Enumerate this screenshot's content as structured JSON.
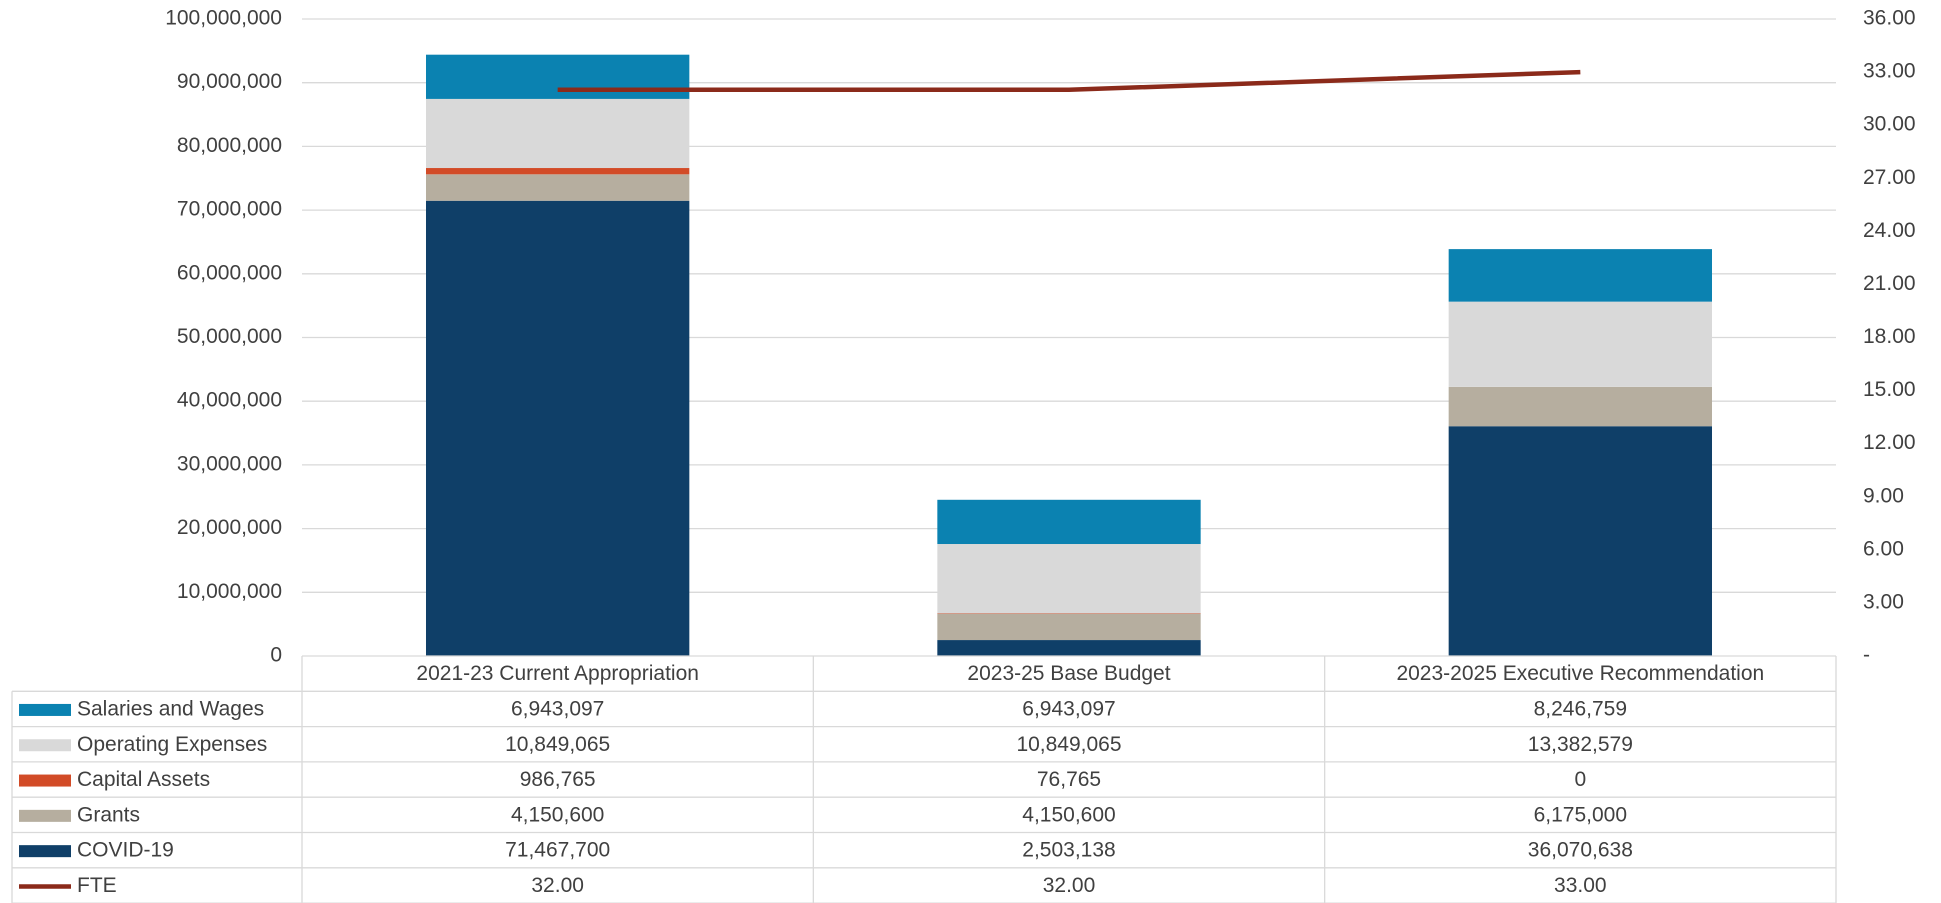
{
  "chart_data": {
    "type": "bar",
    "stacked": true,
    "categories": [
      "2021-23 Current Appropriation",
      "2023-25 Base Budget",
      "2023-2025 Executive Recommendation"
    ],
    "series": [
      {
        "name": "Salaries and Wages",
        "color": "#0b82b1",
        "values": [
          6943097,
          6943097,
          8246759
        ],
        "value_labels": [
          "6,943,097",
          "6,943,097",
          "8,246,759"
        ]
      },
      {
        "name": "Operating Expenses",
        "color": "#d9d9d9",
        "values": [
          10849065,
          10849065,
          13382579
        ],
        "value_labels": [
          "10,849,065",
          "10,849,065",
          "13,382,579"
        ]
      },
      {
        "name": "Capital Assets",
        "color": "#d24b27",
        "values": [
          986765,
          76765,
          0
        ],
        "value_labels": [
          "986,765",
          "76,765",
          "0"
        ]
      },
      {
        "name": "Grants",
        "color": "#b6ae9f",
        "values": [
          4150600,
          4150600,
          6175000
        ],
        "value_labels": [
          "4,150,600",
          "4,150,600",
          "6,175,000"
        ]
      },
      {
        "name": "COVID-19",
        "color": "#0f3f68",
        "values": [
          71467700,
          2503138,
          36070638
        ],
        "value_labels": [
          "71,467,700",
          "2,503,138",
          "36,070,638"
        ]
      },
      {
        "name": "FTE",
        "type": "line",
        "axis": "y2",
        "color": "#8b2a1a",
        "values": [
          32,
          32,
          33
        ],
        "value_labels": [
          "32.00",
          "32.00",
          "33.00"
        ]
      }
    ],
    "ylim": [
      0,
      100000000
    ],
    "yticks": [
      0,
      {
        "value": 10000000,
        "label": "10,000,000"
      },
      {
        "value": 20000000,
        "label": "20,000,000"
      },
      {
        "value": 30000000,
        "label": "30,000,000"
      },
      {
        "value": 40000000,
        "label": "40,000,000"
      },
      {
        "value": 50000000,
        "label": "50,000,000"
      },
      {
        "value": 60000000,
        "label": "60,000,000"
      },
      {
        "value": 70000000,
        "label": "70,000,000"
      },
      {
        "value": 80000000,
        "label": "80,000,000"
      },
      {
        "value": 90000000,
        "label": "90,000,000"
      },
      {
        "value": 100000000,
        "label": "100,000,000"
      }
    ],
    "y2lim": [
      0,
      36
    ],
    "y2ticks": [
      {
        "value": 0,
        "label": "-"
      },
      {
        "value": 3,
        "label": "3.00"
      },
      {
        "value": 6,
        "label": "6.00"
      },
      {
        "value": 9,
        "label": "9.00"
      },
      {
        "value": 12,
        "label": "12.00"
      },
      {
        "value": 15,
        "label": "15.00"
      },
      {
        "value": 18,
        "label": "18.00"
      },
      {
        "value": 21,
        "label": "21.00"
      },
      {
        "value": 24,
        "label": "24.00"
      },
      {
        "value": 27,
        "label": "27.00"
      },
      {
        "value": 30,
        "label": "30.00"
      },
      {
        "value": 33,
        "label": "33.00"
      },
      {
        "value": 36,
        "label": "36.00"
      }
    ],
    "grid": true
  }
}
